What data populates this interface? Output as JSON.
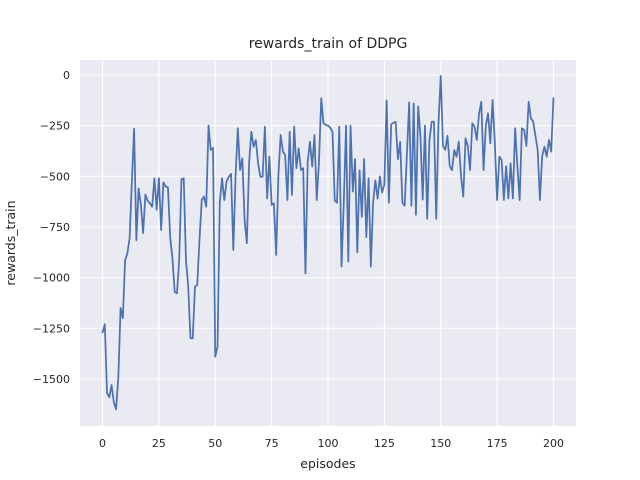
{
  "chart_data": {
    "type": "line",
    "title": "rewards_train of DDPG",
    "xlabel": "episodes",
    "ylabel": "rewards_train",
    "x_range": [
      0,
      200
    ],
    "x_step": 1,
    "xlim": [
      -10,
      210
    ],
    "ylim": [
      -1732,
      74
    ],
    "grid": true,
    "legend_position": "none",
    "xticks": {
      "values": [
        0,
        25,
        50,
        75,
        100,
        125,
        150,
        175,
        200
      ],
      "labels": [
        "0",
        "25",
        "50",
        "75",
        "100",
        "125",
        "150",
        "175",
        "200"
      ]
    },
    "yticks": {
      "values": [
        0,
        -250,
        -500,
        -750,
        -1000,
        -1250,
        -1500
      ],
      "labels": [
        "0",
        "−250",
        "−500",
        "−750",
        "−1000",
        "−1250",
        "−1500"
      ]
    },
    "style": {
      "line_color": "#4c72b0",
      "line_width": 1.75,
      "plot_bg": "#eaeaf2",
      "grid_color": "#ffffff",
      "fig_bg": "#ffffff",
      "text_color": "#262626"
    },
    "series": [
      {
        "name": "rewards_train",
        "color": "#4c72b0",
        "values": [
          -1270,
          -1230,
          -1570,
          -1590,
          -1530,
          -1615,
          -1650,
          -1490,
          -1150,
          -1200,
          -915,
          -880,
          -805,
          -530,
          -265,
          -815,
          -560,
          -640,
          -780,
          -590,
          -620,
          -633,
          -650,
          -510,
          -665,
          -510,
          -765,
          -530,
          -550,
          -555,
          -800,
          -905,
          -1070,
          -1077,
          -913,
          -515,
          -510,
          -913,
          -1044,
          -1299,
          -1299,
          -1044,
          -1036,
          -814,
          -617,
          -600,
          -650,
          -250,
          -370,
          -360,
          -1390,
          -1340,
          -630,
          -510,
          -617,
          -526,
          -502,
          -488,
          -863,
          -502,
          -263,
          -469,
          -411,
          -716,
          -830,
          -436,
          -280,
          -354,
          -321,
          -436,
          -502,
          -502,
          -255,
          -609,
          -403,
          -641,
          -633,
          -888,
          -493,
          -296,
          -378,
          -395,
          -617,
          -280,
          -592,
          -255,
          -460,
          -362,
          -469,
          -460,
          -979,
          -428,
          -329,
          -452,
          -296,
          -617,
          -428,
          -115,
          -238,
          -246,
          -250,
          -260,
          -280,
          -620,
          -630,
          -255,
          -945,
          -630,
          -250,
          -920,
          -250,
          -575,
          -415,
          -875,
          -470,
          -700,
          -415,
          -800,
          -510,
          -945,
          -630,
          -520,
          -610,
          -500,
          -580,
          -540,
          -125,
          -630,
          -245,
          -235,
          -232,
          -415,
          -330,
          -630,
          -645,
          -390,
          -135,
          -645,
          -140,
          -690,
          -155,
          -300,
          -615,
          -250,
          -710,
          -320,
          -230,
          -230,
          -710,
          -240,
          -5,
          -350,
          -370,
          -300,
          -450,
          -470,
          -370,
          -403,
          -329,
          -500,
          -600,
          -312,
          -350,
          -469,
          -238,
          -255,
          -321,
          -190,
          -132,
          -469,
          -250,
          -189,
          -337,
          -123,
          -337,
          -617,
          -403,
          -419,
          -617,
          -450,
          -609,
          -436,
          -609,
          -263,
          -450,
          -617,
          -263,
          -271,
          -350,
          -132,
          -214,
          -230,
          -300,
          -370,
          -617,
          -400,
          -354,
          -403,
          -320,
          -378,
          -115
        ]
      }
    ]
  }
}
